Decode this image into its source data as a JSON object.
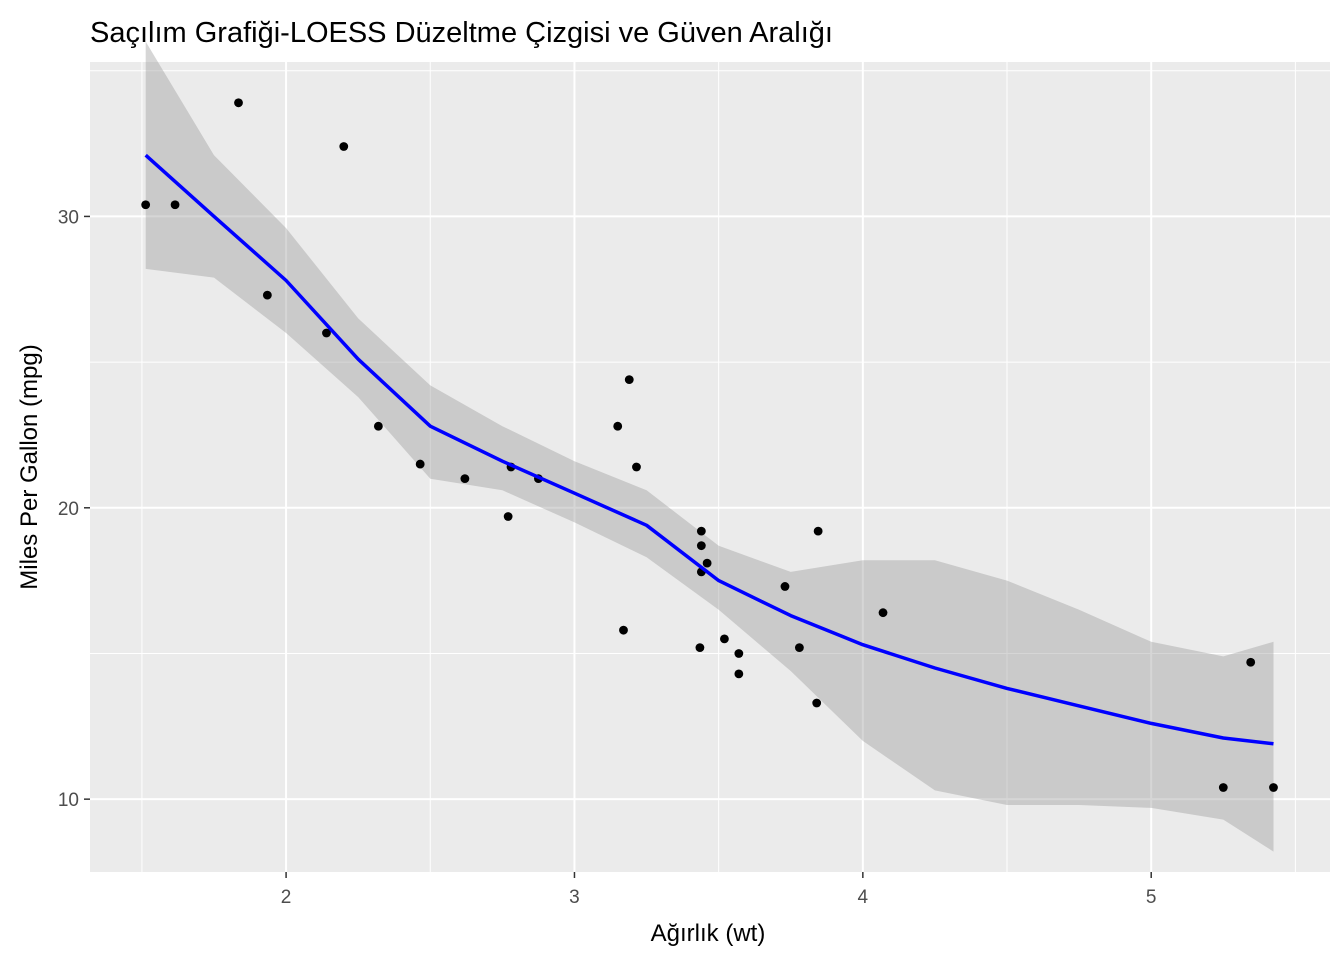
{
  "chart_data": {
    "type": "scatter",
    "title": "Saçılım Grafiği-LOESS Düzeltme Çizgisi ve Güven Aralığı",
    "xlabel": "Ağırlık (wt)",
    "ylabel": "Miles Per Gallon (mpg)",
    "xlim": [
      1.32,
      5.62
    ],
    "ylim": [
      7.5,
      35.3
    ],
    "x_ticks": [
      2,
      3,
      4,
      5
    ],
    "x_tick_labels": [
      "2",
      "3",
      "4",
      "5"
    ],
    "x_minor_ticks": [
      1.5,
      2.5,
      3.5,
      4.5,
      5.5
    ],
    "y_ticks": [
      10,
      20,
      30
    ],
    "y_tick_labels": [
      "10",
      "20",
      "30"
    ],
    "y_minor_ticks": [
      15,
      25,
      35
    ],
    "grid": true,
    "legend": "none",
    "colors": {
      "panel": "#ebebeb",
      "grid": "#ffffff",
      "points": "#000000",
      "smooth_line": "#0000ff",
      "confidence_band": "#999999"
    },
    "points": [
      {
        "x": 2.62,
        "y": 21.0
      },
      {
        "x": 2.875,
        "y": 21.0
      },
      {
        "x": 2.32,
        "y": 22.8
      },
      {
        "x": 3.215,
        "y": 21.4
      },
      {
        "x": 3.44,
        "y": 18.7
      },
      {
        "x": 3.46,
        "y": 18.1
      },
      {
        "x": 3.57,
        "y": 14.3
      },
      {
        "x": 3.19,
        "y": 24.4
      },
      {
        "x": 3.15,
        "y": 22.8
      },
      {
        "x": 3.44,
        "y": 19.2
      },
      {
        "x": 3.44,
        "y": 17.8
      },
      {
        "x": 4.07,
        "y": 16.4
      },
      {
        "x": 3.73,
        "y": 17.3
      },
      {
        "x": 3.78,
        "y": 15.2
      },
      {
        "x": 5.25,
        "y": 10.4
      },
      {
        "x": 5.424,
        "y": 10.4
      },
      {
        "x": 5.345,
        "y": 14.7
      },
      {
        "x": 2.2,
        "y": 32.4
      },
      {
        "x": 1.615,
        "y": 30.4
      },
      {
        "x": 1.835,
        "y": 33.9
      },
      {
        "x": 2.465,
        "y": 21.5
      },
      {
        "x": 3.52,
        "y": 15.5
      },
      {
        "x": 3.435,
        "y": 15.2
      },
      {
        "x": 3.84,
        "y": 13.3
      },
      {
        "x": 3.845,
        "y": 19.2
      },
      {
        "x": 1.935,
        "y": 27.3
      },
      {
        "x": 2.14,
        "y": 26.0
      },
      {
        "x": 1.513,
        "y": 30.4
      },
      {
        "x": 3.17,
        "y": 15.8
      },
      {
        "x": 2.77,
        "y": 19.7
      },
      {
        "x": 3.57,
        "y": 15.0
      },
      {
        "x": 2.78,
        "y": 21.4
      }
    ],
    "smooth": {
      "method": "loess",
      "x": [
        1.513,
        1.75,
        2.0,
        2.25,
        2.5,
        2.75,
        3.0,
        3.25,
        3.5,
        3.75,
        4.0,
        4.25,
        4.5,
        4.75,
        5.0,
        5.25,
        5.424
      ],
      "y": [
        32.1,
        30.0,
        27.8,
        25.1,
        22.8,
        21.6,
        20.5,
        19.4,
        17.5,
        16.3,
        15.3,
        14.5,
        13.8,
        13.2,
        12.6,
        12.1,
        11.9
      ],
      "ymin": [
        28.2,
        27.9,
        26.0,
        23.8,
        21.0,
        20.6,
        19.5,
        18.3,
        16.5,
        14.4,
        12.0,
        10.3,
        9.8,
        9.8,
        9.7,
        9.3,
        8.2
      ],
      "ymax": [
        36.0,
        32.1,
        29.6,
        26.5,
        24.2,
        22.8,
        21.6,
        20.6,
        18.7,
        17.8,
        18.2,
        18.2,
        17.5,
        16.5,
        15.4,
        14.9,
        15.4
      ]
    }
  }
}
